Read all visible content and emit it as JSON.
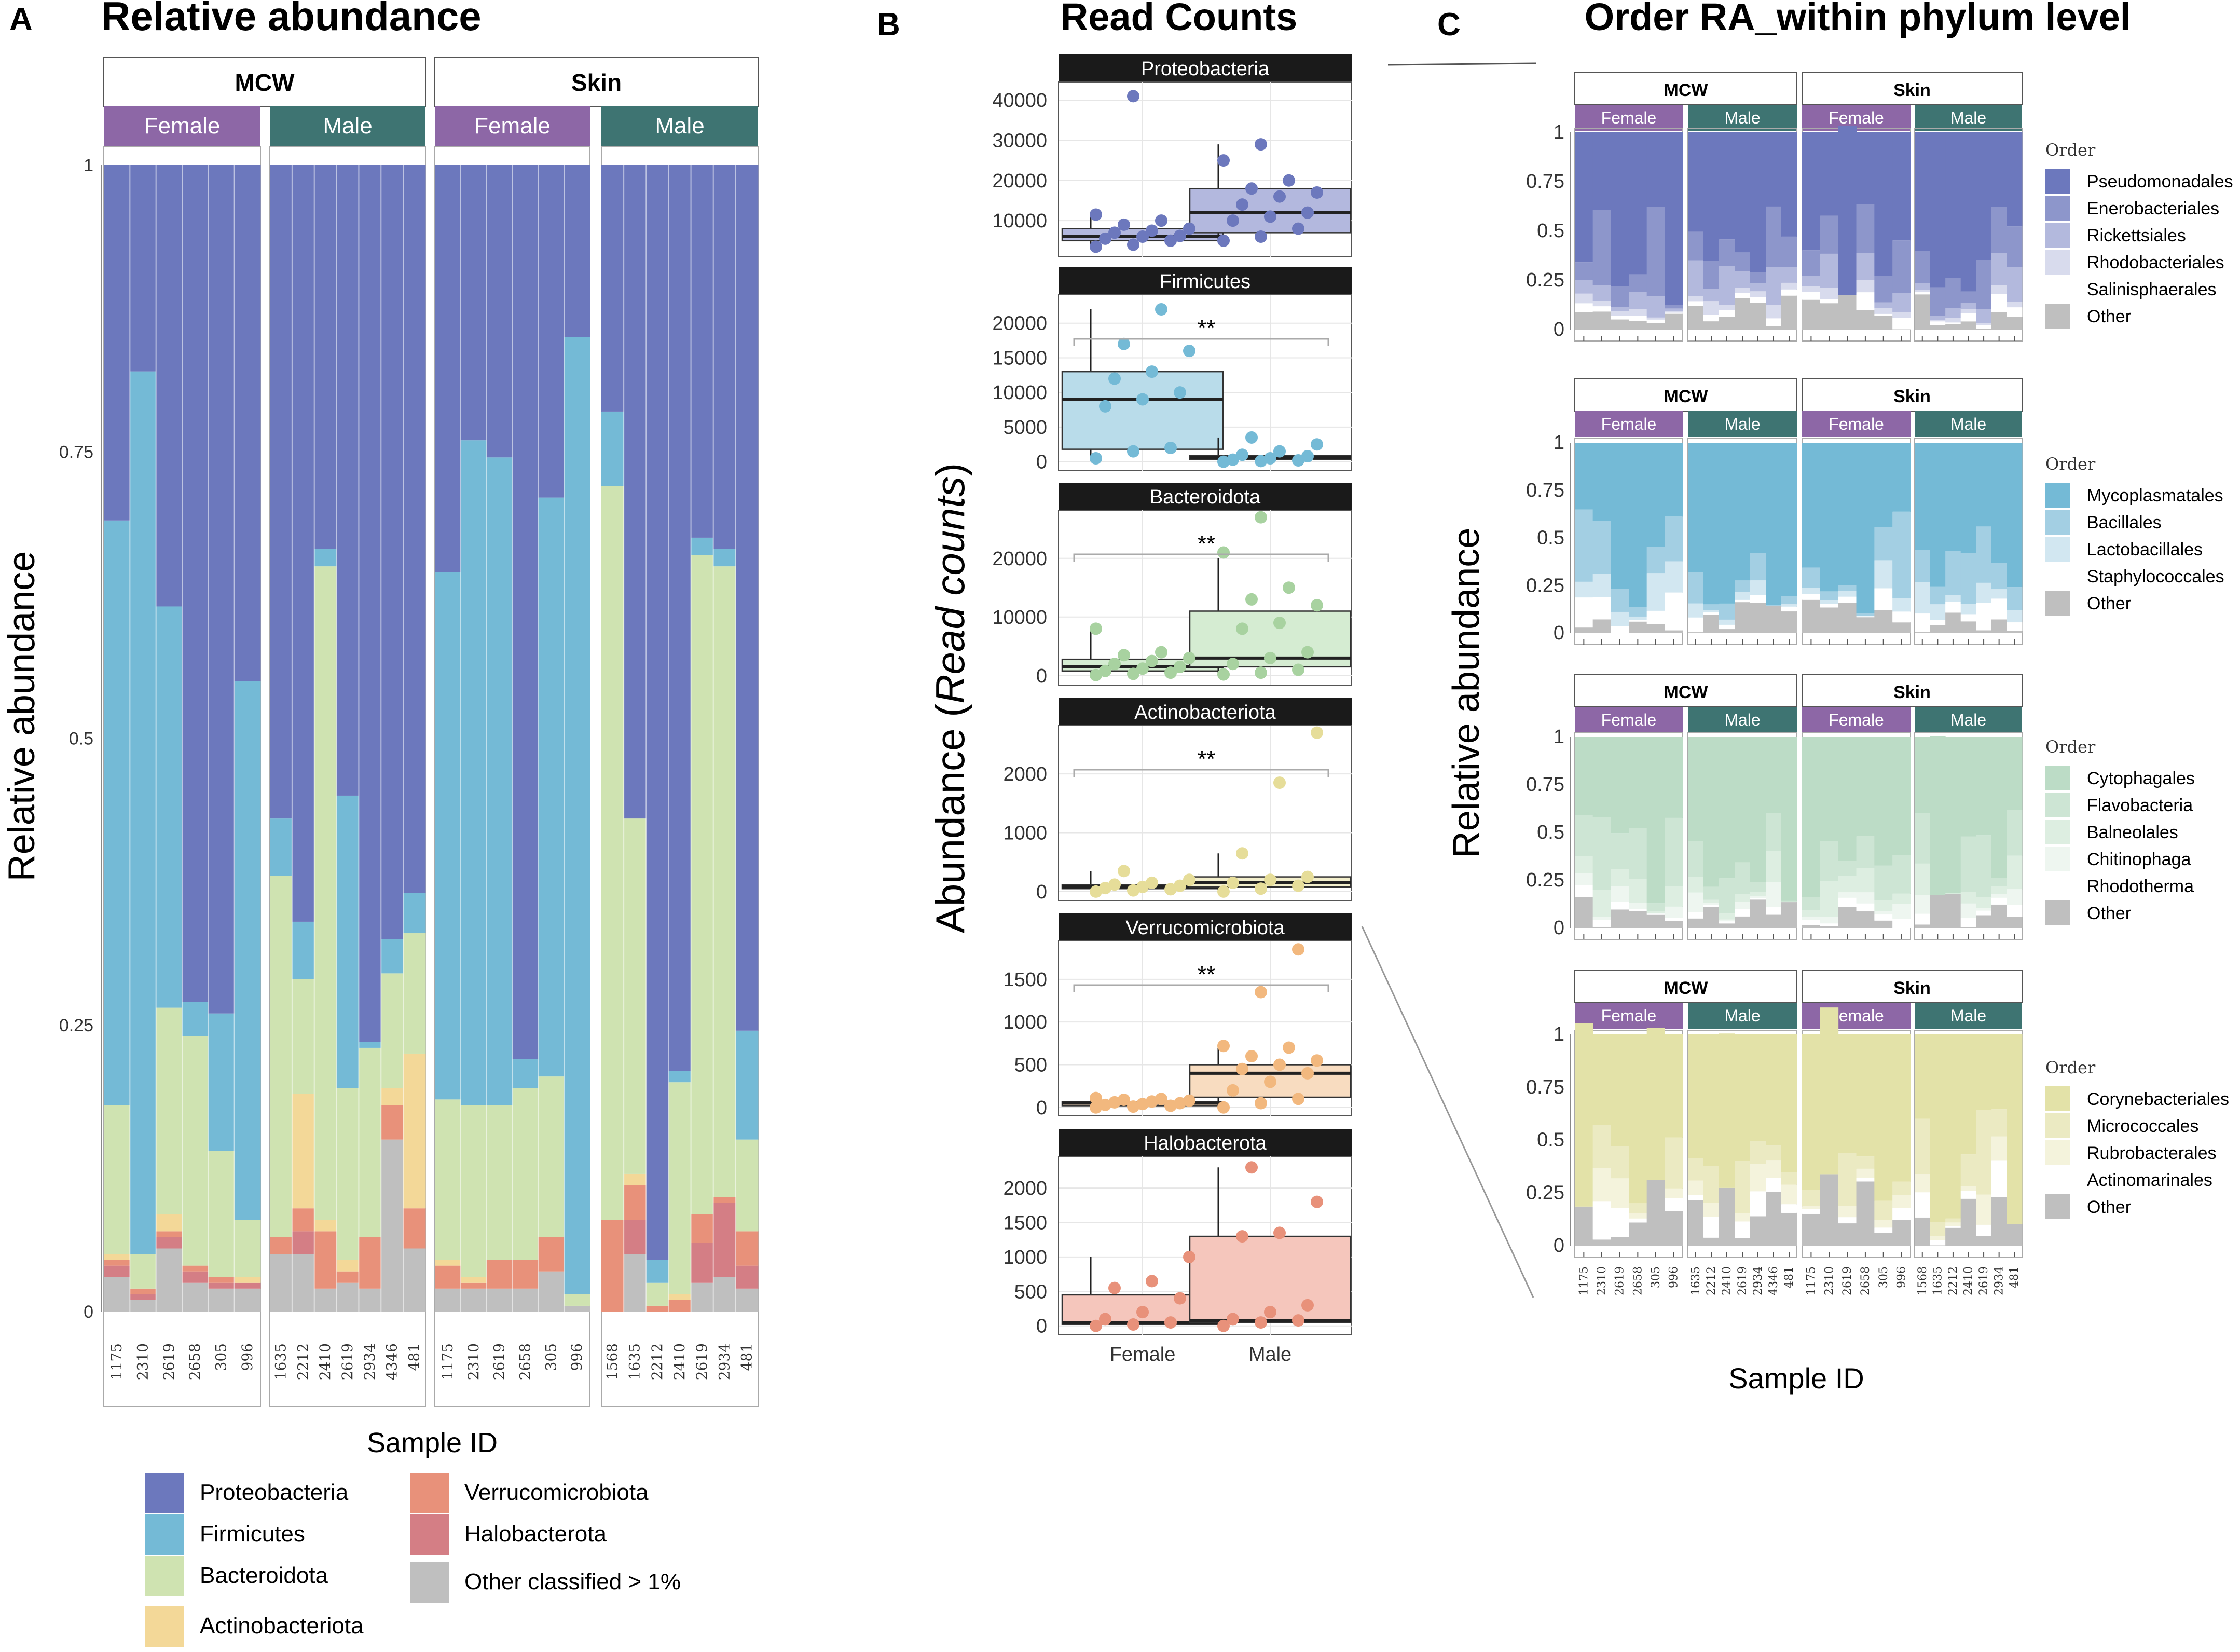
{
  "colors": {
    "Proteobacteria": "#6c78bd",
    "Firmicutes": "#74bad6",
    "Bacteroidota": "#cfe3b1",
    "Actinobacteriota": "#f3d898",
    "Verrucomicrobiota": "#e8917a",
    "Halobacterota": "#d47e85",
    "Other": "#bfbfbf",
    "female_strip": "#8d67a6",
    "male_strip": "#3e7472"
  },
  "labels": {
    "panel_a_letter": "A",
    "panel_b_letter": "B",
    "panel_c_letter": "C",
    "strip_mcw": "MCW",
    "strip_skin": "Skin",
    "strip_female": "Female",
    "strip_male": "Male",
    "legend_order": "Order"
  },
  "chart_data": [
    {
      "id": "A",
      "type": "bar",
      "stacked": true,
      "title": "Relative abundance",
      "ylabel": "Relative abundance",
      "xlabel": "Sample ID",
      "ylim": [
        0,
        1
      ],
      "yticks": [
        "0",
        "0.25",
        "0.5",
        "0.75",
        "1"
      ],
      "groups": [
        {
          "site": "MCW",
          "sex": "Female",
          "samples": [
            "1175",
            "2310",
            "2619",
            "2658",
            "305",
            "996"
          ]
        },
        {
          "site": "MCW",
          "sex": "Male",
          "samples": [
            "1635",
            "2212",
            "2410",
            "2619",
            "2934",
            "4346",
            "481"
          ]
        },
        {
          "site": "Skin",
          "sex": "Female",
          "samples": [
            "1175",
            "2310",
            "2619",
            "2658",
            "305",
            "996"
          ]
        },
        {
          "site": "Skin",
          "sex": "Male",
          "samples": [
            "1568",
            "1635",
            "2212",
            "2410",
            "2619",
            "2934",
            "481"
          ]
        }
      ],
      "series_order_bottom_up": [
        "Other",
        "Halobacterota",
        "Verrucomicrobiota",
        "Actinobacteriota",
        "Bacteroidota",
        "Firmicutes",
        "Proteobacteria"
      ],
      "composition": [
        [
          [
            0.03,
            0.01,
            0.005,
            0.005,
            0.13,
            0.51,
            0.31
          ],
          [
            0.01,
            0.005,
            0.005,
            0.0,
            0.03,
            0.77,
            0.18
          ],
          [
            0.055,
            0.01,
            0.005,
            0.015,
            0.18,
            0.35,
            0.385
          ],
          [
            0.025,
            0.01,
            0.005,
            0.0,
            0.2,
            0.03,
            0.73
          ],
          [
            0.02,
            0.005,
            0.005,
            0.0,
            0.11,
            0.12,
            0.74
          ],
          [
            0.02,
            0.005,
            0.0,
            0.005,
            0.05,
            0.47,
            0.45
          ]
        ],
        [
          [
            0.05,
            0.0,
            0.015,
            0.0,
            0.315,
            0.05,
            0.57
          ],
          [
            0.05,
            0.02,
            0.02,
            0.1,
            0.1,
            0.05,
            0.66
          ],
          [
            0.02,
            0.0,
            0.05,
            0.01,
            0.57,
            0.015,
            0.335
          ],
          [
            0.025,
            0.0,
            0.01,
            0.01,
            0.15,
            0.255,
            0.55
          ],
          [
            0.02,
            0.0,
            0.045,
            0.0,
            0.165,
            0.005,
            0.765
          ],
          [
            0.15,
            0.0,
            0.03,
            0.015,
            0.1,
            0.03,
            0.675
          ],
          [
            0.055,
            0.0,
            0.035,
            0.135,
            0.105,
            0.035,
            0.635
          ]
        ],
        [
          [
            0.02,
            0.0,
            0.02,
            0.005,
            0.14,
            0.46,
            0.355
          ],
          [
            0.02,
            0.0,
            0.005,
            0.005,
            0.15,
            0.58,
            0.24
          ],
          [
            0.02,
            0.0,
            0.025,
            0.0,
            0.135,
            0.565,
            0.255
          ],
          [
            0.02,
            0.0,
            0.025,
            0.0,
            0.15,
            0.025,
            0.78
          ],
          [
            0.035,
            0.0,
            0.03,
            0.0,
            0.14,
            0.505,
            0.29
          ],
          [
            0.005,
            0.0,
            0.0,
            0.0,
            0.01,
            0.835,
            0.15
          ]
        ],
        [
          [
            0.0,
            0.0,
            0.08,
            0.0,
            0.64,
            0.065,
            0.215
          ],
          [
            0.05,
            0.03,
            0.03,
            0.01,
            0.31,
            0.0,
            0.57
          ],
          [
            0.0,
            0.0,
            0.005,
            0.0,
            0.02,
            0.02,
            0.955
          ],
          [
            0.0,
            0.0,
            0.01,
            0.005,
            0.185,
            0.01,
            0.79
          ],
          [
            0.025,
            0.035,
            0.025,
            0.0,
            0.575,
            0.015,
            0.325
          ],
          [
            0.03,
            0.065,
            0.005,
            0.0,
            0.55,
            0.015,
            0.335
          ],
          [
            0.02,
            0.02,
            0.03,
            0.0,
            0.08,
            0.095,
            0.755
          ]
        ]
      ],
      "legend": [
        "Proteobacteria",
        "Firmicutes",
        "Bacteroidota",
        "Actinobacteriota",
        "Verrucomicrobiota",
        "Halobacterota",
        "Other classified > 1%"
      ]
    },
    {
      "id": "B",
      "type": "box+scatter",
      "title": "Read Counts",
      "ylabel_plain": "Abundance (",
      "ylabel_italic": "Read counts",
      "ylabel_close": ")",
      "categories": [
        "Female",
        "Male"
      ],
      "facets": [
        {
          "name": "Proteobacteria",
          "ylim": [
            2000,
            43500
          ],
          "yticks": [
            10000,
            20000,
            30000,
            40000
          ],
          "sig": "",
          "box": [
            [
              3500,
              5000,
              6000,
              8000,
              11500
            ],
            [
              5000,
              7000,
              12000,
              18000,
              29000
            ]
          ],
          "female": [
            3500,
            4000,
            5000,
            5500,
            6000,
            6200,
            7000,
            7500,
            8000,
            9000,
            10000,
            11500,
            41000
          ],
          "male": [
            5000,
            6000,
            8000,
            10000,
            11000,
            12000,
            14000,
            16000,
            17000,
            18000,
            20000,
            25000,
            29000
          ]
        },
        {
          "name": "Firmicutes",
          "ylim": [
            -700,
            23500
          ],
          "yticks": [
            0,
            5000,
            10000,
            15000,
            20000
          ],
          "sig": "**",
          "box": [
            [
              500,
              1800,
              9000,
              13000,
              22000
            ],
            [
              0,
              300,
              600,
              900,
              3500
            ]
          ],
          "female": [
            500,
            1500,
            2000,
            8000,
            9000,
            10000,
            12000,
            13000,
            16000,
            17000,
            22000
          ],
          "male": [
            0,
            100,
            200,
            300,
            500,
            800,
            1000,
            1500,
            2500,
            3500
          ]
        },
        {
          "name": "Bacteroidota",
          "ylim": [
            -900,
            27500
          ],
          "yticks": [
            0,
            10000,
            20000
          ],
          "sig": "**",
          "box": [
            [
              100,
              800,
              1500,
              2800,
              8000
            ],
            [
              200,
              1500,
              3000,
              11000,
              20000
            ]
          ],
          "female": [
            100,
            300,
            500,
            800,
            1200,
            1500,
            2000,
            2500,
            3000,
            3500,
            4000,
            8000
          ],
          "male": [
            200,
            500,
            1000,
            2000,
            3000,
            4000,
            8000,
            9000,
            12000,
            13000,
            15000,
            21000,
            27000
          ]
        },
        {
          "name": "Actinobacteriota",
          "ylim": [
            -80,
            2750
          ],
          "yticks": [
            0,
            1000,
            2000
          ],
          "sig": "**",
          "box": [
            [
              0,
              50,
              80,
              120,
              350
            ],
            [
              0,
              80,
              150,
              250,
              650
            ]
          ],
          "female": [
            0,
            20,
            40,
            60,
            80,
            100,
            120,
            150,
            200,
            350
          ],
          "male": [
            0,
            50,
            100,
            150,
            200,
            250,
            650,
            1850,
            2700
          ]
        },
        {
          "name": "Verrucomicrobiota",
          "ylim": [
            -50,
            1900
          ],
          "yticks": [
            0,
            500,
            1000,
            1500
          ],
          "sig": "**",
          "box": [
            [
              0,
              20,
              50,
              70,
              110
            ],
            [
              0,
              120,
              400,
              500,
              720
            ]
          ],
          "female": [
            0,
            10,
            20,
            30,
            40,
            50,
            60,
            70,
            80,
            90,
            100,
            110
          ],
          "male": [
            0,
            50,
            100,
            200,
            300,
            400,
            450,
            500,
            550,
            600,
            700,
            720,
            1350,
            1850
          ]
        },
        {
          "name": "Halobacterota",
          "ylim": [
            -70,
            2400
          ],
          "yticks": [
            0,
            500,
            1000,
            1500,
            2000
          ],
          "sig": "",
          "box": [
            [
              0,
              30,
              50,
              450,
              1000
            ],
            [
              0,
              50,
              80,
              1300,
              2300
            ]
          ],
          "female": [
            0,
            20,
            50,
            100,
            200,
            400,
            550,
            650,
            1000
          ],
          "male": [
            0,
            50,
            80,
            100,
            200,
            300,
            1300,
            1350,
            1800,
            2300
          ]
        }
      ]
    },
    {
      "id": "C",
      "type": "bar",
      "stacked": true,
      "title": "Order RA_within phylum level",
      "ylabel": "Relative abundance",
      "xlabel": "Sample ID",
      "ylim": [
        0,
        1
      ],
      "yticks": [
        "0",
        "0.25",
        "0.5",
        "0.75",
        "1"
      ],
      "sample_labels": [
        [
          "1175",
          "2310",
          "2619",
          "2658",
          "305",
          "996"
        ],
        [
          "1635",
          "2212",
          "2410",
          "2619",
          "2934",
          "4346",
          "481"
        ],
        [
          "1175",
          "2310",
          "2619",
          "2658",
          "305",
          "996"
        ],
        [
          "1568",
          "1635",
          "2212",
          "2410",
          "2619",
          "2934",
          "481"
        ]
      ],
      "rows": [
        {
          "phylum": "Proteobacteria",
          "orders": [
            "Pseudomonadales",
            "Enerobacteriales",
            "Rickettsiales",
            "Rhodobacteriales",
            "Salinisphaerales",
            "Other"
          ],
          "colors": [
            "#6c78bd",
            "#8d96cb",
            "#b3b9dd",
            "#d8dbed",
            "#ffffff",
            "#bfbfbf"
          ]
        },
        {
          "phylum": "Firmicutes",
          "orders": [
            "Mycoplasmatales",
            "Bacillales",
            "Lactobacillales",
            "Staphylococcales",
            "Other"
          ],
          "colors": [
            "#74bad6",
            "#a3cfe3",
            "#d2e7f1",
            "#ffffff",
            "#bfbfbf"
          ]
        },
        {
          "phylum": "Bacteroidota",
          "orders": [
            "Cytophagales",
            "Flavobacteria",
            "Balneolales",
            "Chitinophaga",
            "Rhodotherma",
            "Other"
          ],
          "colors": [
            "#bcdcc6",
            "#cde5d4",
            "#ddeee1",
            "#eef6f0",
            "#ffffff",
            "#bfbfbf"
          ]
        },
        {
          "phylum": "Actinobacteriota",
          "orders": [
            "Corynebacteriales",
            "Micrococcales",
            "Rubrobacterales",
            "Actinomarinales",
            "Other"
          ],
          "colors": [
            "#e3e2a8",
            "#ebeac2",
            "#f4f3dc",
            "#ffffff",
            "#bfbfbf"
          ]
        }
      ]
    }
  ]
}
